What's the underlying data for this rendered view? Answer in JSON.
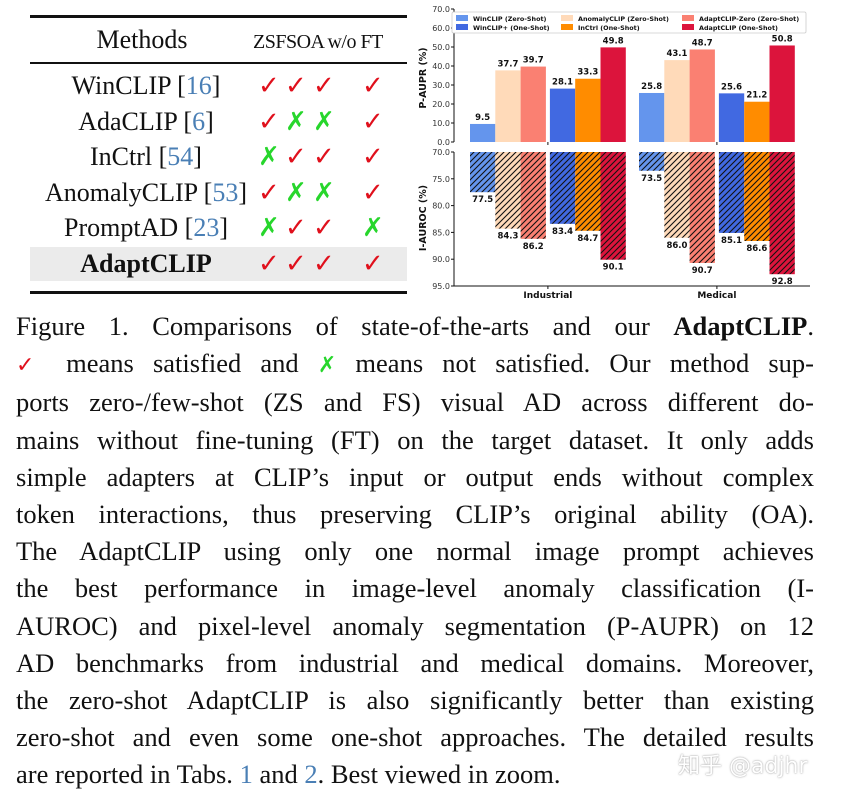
{
  "table": {
    "header": {
      "methods": "Methods",
      "cols": [
        "ZS",
        "FS",
        "OA",
        "w/o FT"
      ]
    },
    "rows": [
      {
        "name": "WinCLIP ",
        "ref": "16",
        "marks": [
          true,
          true,
          true,
          true
        ],
        "highlight": false
      },
      {
        "name": "AdaCLIP ",
        "ref": "6",
        "marks": [
          true,
          false,
          false,
          true
        ],
        "highlight": false
      },
      {
        "name": "InCtrl ",
        "ref": "54",
        "marks": [
          false,
          true,
          true,
          true
        ],
        "highlight": false
      },
      {
        "name": "AnomalyCLIP ",
        "ref": "53",
        "marks": [
          true,
          false,
          false,
          true
        ],
        "highlight": false
      },
      {
        "name": "PromptAD ",
        "ref": "23",
        "marks": [
          false,
          true,
          true,
          false
        ],
        "highlight": false
      },
      {
        "name": "AdaptCLIP",
        "ref": "",
        "marks": [
          true,
          true,
          true,
          true
        ],
        "highlight": true
      }
    ],
    "check_glyph": "✓",
    "cross_glyph": "✗"
  },
  "chart_data": {
    "type": "bar",
    "categories": [
      "Industrial",
      "Medical"
    ],
    "legend_position": "top",
    "series": [
      {
        "name": "WinCLIP (Zero-Shot)",
        "color": "#6495ED",
        "p_aupr": [
          9.5,
          25.8
        ],
        "i_auroc": [
          77.5,
          73.5
        ]
      },
      {
        "name": "AnomalyCLIP (Zero-Shot)",
        "color": "#FFDAB9",
        "p_aupr": [
          37.7,
          43.1
        ],
        "i_auroc": [
          84.3,
          86.0
        ]
      },
      {
        "name": "AdaptCLIP-Zero (Zero-Shot)",
        "color": "#FA8072",
        "p_aupr": [
          39.7,
          48.7
        ],
        "i_auroc": [
          86.2,
          90.7
        ]
      },
      {
        "name": "WinCLIP+ (One-Shot)",
        "color": "#4169E1",
        "p_aupr": [
          28.1,
          25.6
        ],
        "i_auroc": [
          83.4,
          85.1
        ]
      },
      {
        "name": "InCtrl (One-Shot)",
        "color": "#FF8C00",
        "p_aupr": [
          33.3,
          21.2
        ],
        "i_auroc": [
          84.7,
          86.6
        ]
      },
      {
        "name": "AdaptCLIP (One-Shot)",
        "color": "#DC143C",
        "p_aupr": [
          49.8,
          50.8
        ],
        "i_auroc": [
          90.1,
          92.8
        ]
      }
    ],
    "legend_order": [
      0,
      3,
      1,
      4,
      2,
      5
    ],
    "top_panel": {
      "ylabel": "P-AUPR (%)",
      "ylim": [
        0,
        70
      ],
      "ticks": [
        "0.0",
        "10.0",
        "20.0",
        "30.0",
        "40.0",
        "50.0",
        "60.0",
        "70.0"
      ]
    },
    "bottom_panel": {
      "ylabel": "I-AUROC (%)",
      "ylim": [
        70,
        95
      ],
      "inverted": true,
      "hatched": true,
      "ticks": [
        "70.0",
        "75.0",
        "80.0",
        "85.0",
        "90.0",
        "95.0"
      ]
    },
    "grid": false
  },
  "caption": {
    "lines": [
      [
        {
          "t": "Figure 1.  Comparisons of state-of-the-arts and our "
        },
        {
          "t": "AdaptCLIP",
          "c": "bold"
        },
        {
          "t": "."
        }
      ],
      [
        {
          "t": "✓",
          "c": "cap-check"
        },
        {
          "t": " means satisfied and "
        },
        {
          "t": "✗",
          "c": "cap-cross"
        },
        {
          "t": " means not satisfied.  Our method sup-"
        }
      ],
      [
        {
          "t": "ports zero-/few-shot (ZS and FS) visual AD across different do-"
        }
      ],
      [
        {
          "t": "mains without fine-tuning (FT) on the target dataset. It only adds"
        }
      ],
      [
        {
          "t": "simple adapters at CLIP’s input or output ends without complex"
        }
      ],
      [
        {
          "t": "token interactions, thus preserving CLIP’s original ability (OA)."
        }
      ],
      [
        {
          "t": "The AdaptCLIP using only one normal image prompt achieves"
        }
      ],
      [
        {
          "t": "the best performance in image-level anomaly classification (I-"
        }
      ],
      [
        {
          "t": "AUROC) and pixel-level anomaly segmentation (P-AUPR) on 12"
        }
      ],
      [
        {
          "t": "AD benchmarks from industrial and medical domains. Moreover,"
        }
      ],
      [
        {
          "t": "the zero-shot AdaptCLIP is also significantly better than existing"
        }
      ],
      [
        {
          "t": "zero-shot and even some one-shot approaches. The detailed results"
        }
      ],
      [
        {
          "t": "are reported in Tabs. "
        },
        {
          "t": "1",
          "c": "link"
        },
        {
          "t": " and  "
        },
        {
          "t": "2",
          "c": "link"
        },
        {
          "t": ". Best viewed in zoom."
        }
      ]
    ]
  },
  "watermark": "知乎 @adjhr"
}
